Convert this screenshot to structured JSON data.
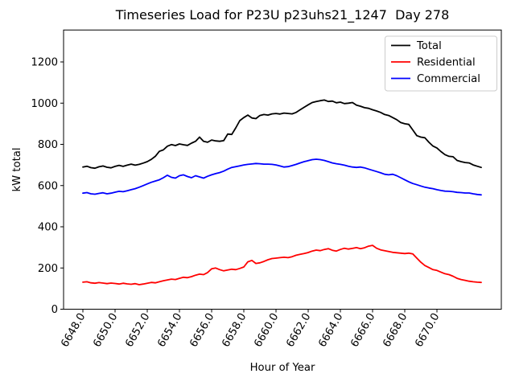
{
  "title": "Timeseries Load for P23U p23uhs21_1247  Day 278",
  "chart_data": {
    "type": "line",
    "title": "Timeseries Load for P23U p23uhs21_1247  Day 278",
    "xlabel": "Hour of Year",
    "ylabel": "kW total",
    "xlim": [
      6646.8,
      6674.0
    ],
    "ylim": [
      0,
      1355
    ],
    "grid": false,
    "xticks": [
      6648,
      6650,
      6652,
      6654,
      6656,
      6658,
      6660,
      6662,
      6664,
      6666,
      6668,
      6670
    ],
    "xtick_labels": [
      "6648.0",
      "6650.0",
      "6652.0",
      "6654.0",
      "6656.0",
      "6658.0",
      "6660.0",
      "6662.0",
      "6664.0",
      "6666.0",
      "6668.0",
      "6670.0"
    ],
    "xtick_rotation_deg": 60,
    "yticks": [
      0,
      200,
      400,
      600,
      800,
      1000,
      1200
    ],
    "ytick_labels": [
      "0",
      "200",
      "400",
      "600",
      "800",
      "1000",
      "1200"
    ],
    "legend": {
      "position": "upper right",
      "entries": [
        {
          "label": "Total",
          "color": "#000000"
        },
        {
          "label": "Residential",
          "color": "#ff0000"
        },
        {
          "label": "Commercial",
          "color": "#0000ff"
        }
      ]
    },
    "x": [
      6648.0,
      6648.25,
      6648.5,
      6648.75,
      6649.0,
      6649.25,
      6649.5,
      6649.75,
      6650.0,
      6650.25,
      6650.5,
      6650.75,
      6651.0,
      6651.25,
      6651.5,
      6651.75,
      6652.0,
      6652.25,
      6652.5,
      6652.75,
      6653.0,
      6653.25,
      6653.5,
      6653.75,
      6654.0,
      6654.25,
      6654.5,
      6654.75,
      6655.0,
      6655.25,
      6655.5,
      6655.75,
      6656.0,
      6656.25,
      6656.5,
      6656.75,
      6657.0,
      6657.25,
      6657.5,
      6657.75,
      6658.0,
      6658.25,
      6658.5,
      6658.75,
      6659.0,
      6659.25,
      6659.5,
      6659.75,
      6660.0,
      6660.25,
      6660.5,
      6660.75,
      6661.0,
      6661.25,
      6661.5,
      6661.75,
      6662.0,
      6662.25,
      6662.5,
      6662.75,
      6663.0,
      6663.25,
      6663.5,
      6663.75,
      6664.0,
      6664.25,
      6664.5,
      6664.75,
      6665.0,
      6665.25,
      6665.5,
      6665.75,
      6666.0,
      6666.25,
      6666.5,
      6666.75,
      6667.0,
      6667.25,
      6667.5,
      6667.75,
      6668.0,
      6668.25,
      6668.5,
      6668.75,
      6669.0,
      6669.25,
      6669.5,
      6669.75,
      6670.0,
      6670.25,
      6670.5,
      6670.75,
      6671.0,
      6671.25,
      6671.5,
      6671.75,
      6672.0,
      6672.25,
      6672.5,
      6672.75
    ],
    "series": [
      {
        "name": "Total",
        "color": "#000000",
        "values": [
          690,
          694,
          687,
          684,
          691,
          695,
          689,
          686,
          693,
          698,
          693,
          699,
          704,
          699,
          703,
          709,
          716,
          727,
          742,
          766,
          773,
          791,
          799,
          794,
          802,
          798,
          795,
          806,
          815,
          835,
          815,
          810,
          821,
          817,
          815,
          818,
          850,
          848,
          880,
          915,
          930,
          942,
          928,
          925,
          940,
          945,
          942,
          948,
          950,
          947,
          952,
          950,
          948,
          955,
          968,
          980,
          992,
          1003,
          1008,
          1012,
          1015,
          1008,
          1010,
          1002,
          1005,
          998,
          1000,
          1003,
          990,
          985,
          978,
          975,
          968,
          962,
          955,
          945,
          940,
          930,
          920,
          906,
          900,
          897,
          870,
          842,
          835,
          832,
          810,
          792,
          782,
          765,
          750,
          742,
          740,
          722,
          716,
          712,
          710,
          700,
          694,
          688
        ]
      },
      {
        "name": "Residential",
        "color": "#ff0000",
        "values": [
          131,
          133,
          128,
          126,
          129,
          127,
          124,
          127,
          125,
          122,
          126,
          123,
          121,
          124,
          119,
          122,
          126,
          130,
          128,
          133,
          138,
          142,
          146,
          144,
          150,
          155,
          153,
          158,
          165,
          170,
          168,
          178,
          196,
          200,
          192,
          186,
          190,
          194,
          192,
          198,
          205,
          230,
          237,
          222,
          225,
          232,
          240,
          246,
          248,
          250,
          252,
          250,
          255,
          262,
          266,
          270,
          275,
          282,
          287,
          284,
          290,
          294,
          286,
          282,
          290,
          296,
          292,
          295,
          299,
          294,
          298,
          306,
          310,
          296,
          288,
          284,
          280,
          276,
          274,
          272,
          270,
          272,
          268,
          248,
          228,
          212,
          202,
          192,
          188,
          180,
          172,
          168,
          160,
          150,
          144,
          140,
          136,
          133,
          131,
          130
        ]
      },
      {
        "name": "Commercial",
        "color": "#0000ff",
        "values": [
          563,
          566,
          560,
          558,
          562,
          565,
          560,
          563,
          568,
          572,
          570,
          575,
          580,
          585,
          592,
          600,
          608,
          616,
          622,
          628,
          638,
          650,
          640,
          636,
          648,
          652,
          644,
          638,
          648,
          642,
          636,
          645,
          652,
          658,
          663,
          670,
          680,
          688,
          692,
          696,
          700,
          703,
          705,
          707,
          706,
          704,
          704,
          703,
          700,
          695,
          690,
          692,
          697,
          703,
          710,
          716,
          721,
          726,
          728,
          726,
          722,
          716,
          710,
          706,
          703,
          699,
          694,
          690,
          688,
          690,
          686,
          680,
          674,
          668,
          662,
          655,
          652,
          655,
          648,
          638,
          628,
          618,
          610,
          604,
          598,
          592,
          588,
          585,
          580,
          576,
          573,
          572,
          570,
          567,
          566,
          564,
          564,
          560,
          557,
          555
        ]
      }
    ]
  }
}
